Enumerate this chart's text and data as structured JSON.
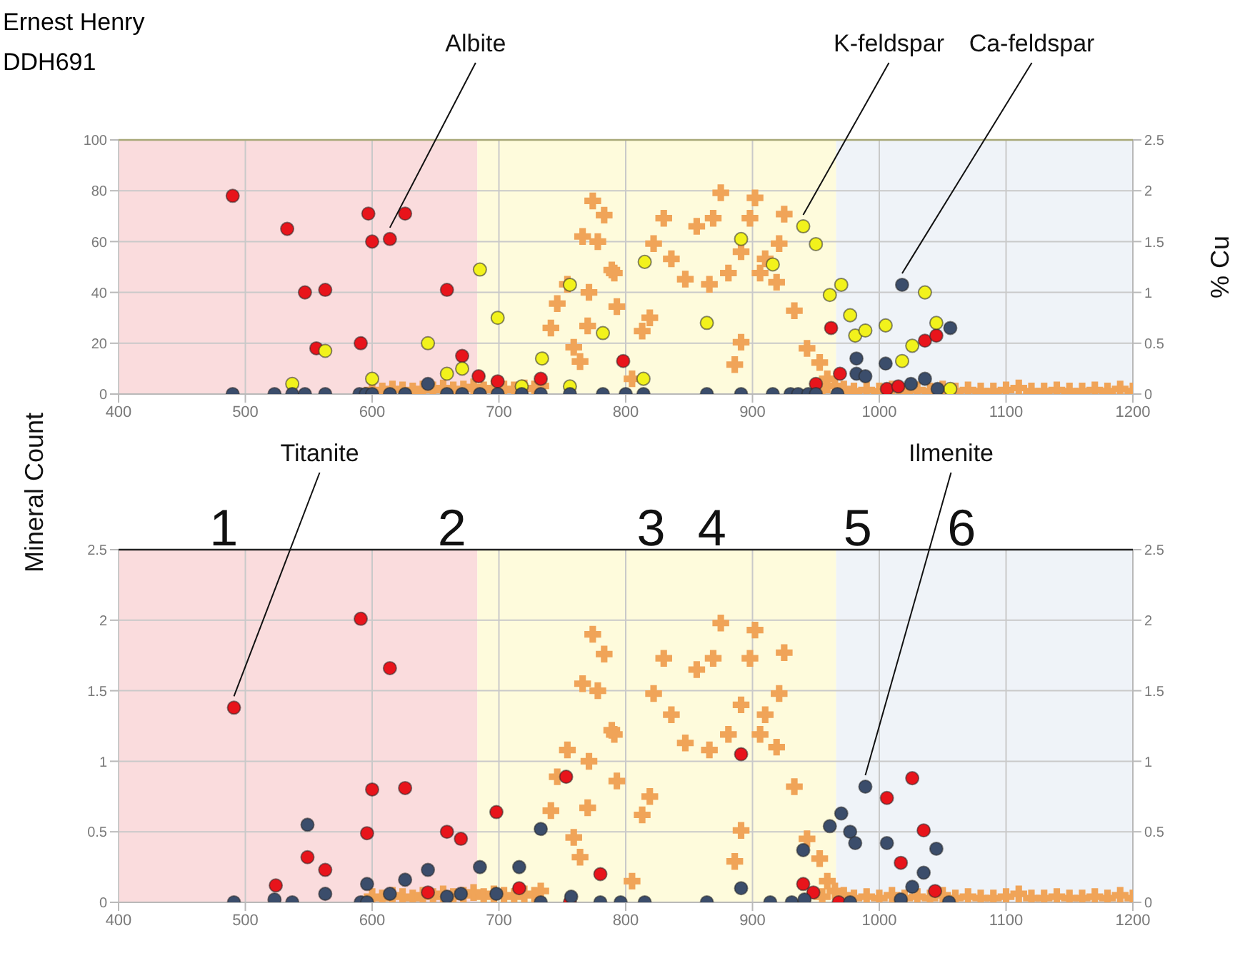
{
  "chart_data": [
    {
      "type": "scatter",
      "title": "Ernest Henry",
      "subtitle": "DDH691",
      "y2label": "% Cu",
      "xlim": [
        400,
        1200
      ],
      "xticks": [
        400,
        500,
        600,
        700,
        800,
        900,
        1000,
        1100,
        1200
      ],
      "ylim": [
        0,
        100
      ],
      "yticks": [
        0,
        20,
        40,
        60,
        80,
        100
      ],
      "y2lim": [
        0,
        2.5
      ],
      "y2ticks": [
        0,
        0.5,
        1,
        1.5,
        2,
        2.5
      ],
      "grid": true,
      "legend": false,
      "bands": [
        {
          "axis": "x",
          "from": 400,
          "to": 683,
          "color": "#fadcdd"
        },
        {
          "axis": "x",
          "from": 683,
          "to": 966,
          "color": "#fefbdc"
        },
        {
          "axis": "x",
          "from": 966,
          "to": 1200,
          "color": "#eff3f8"
        }
      ],
      "annotations": [
        {
          "text": "Albite",
          "x": 614,
          "y": 61
        },
        {
          "text": "K-feldspar",
          "x": 940,
          "y": 66
        },
        {
          "text": "Ca-feldspar",
          "x": 1018,
          "y": 43
        }
      ],
      "series": [
        {
          "type": "scatter",
          "marker": "cross",
          "axis": "y2",
          "color": "#f0a458",
          "x": [
            600,
            608,
            616,
            624,
            632,
            640,
            648,
            656,
            664,
            672,
            680,
            688,
            696,
            704,
            712,
            720,
            728,
            733,
            741,
            746,
            754,
            759,
            764,
            766,
            770,
            771,
            774,
            778,
            783,
            789,
            791,
            793,
            805,
            813,
            819,
            822,
            830,
            836,
            847,
            856,
            866,
            869,
            875,
            881,
            886,
            891,
            891,
            898,
            902,
            906,
            910,
            919,
            921,
            925,
            933,
            943,
            953,
            955,
            959,
            965,
            972,
            980,
            990,
            1000,
            1010,
            1020,
            1030,
            1040,
            1050,
            1060,
            1070,
            1080,
            1090,
            1100,
            1110,
            1120,
            1130,
            1140,
            1150,
            1160,
            1170,
            1180,
            1190,
            1200
          ],
          "values": [
            0.04,
            0.03,
            0.05,
            0.04,
            0.03,
            0.05,
            0.04,
            0.06,
            0.04,
            0.05,
            0.07,
            0.04,
            0.06,
            0.05,
            0.04,
            0.06,
            0.05,
            0.08,
            0.65,
            0.89,
            1.08,
            0.46,
            0.32,
            1.55,
            0.67,
            1.0,
            1.9,
            1.5,
            1.76,
            1.22,
            1.19,
            0.86,
            0.15,
            0.62,
            0.75,
            1.48,
            1.73,
            1.33,
            1.13,
            1.65,
            1.08,
            1.73,
            1.98,
            1.19,
            0.29,
            0.51,
            1.4,
            1.73,
            1.93,
            1.19,
            1.33,
            1.1,
            1.48,
            1.77,
            0.82,
            0.45,
            0.31,
            0.04,
            0.15,
            0.08,
            0.05,
            0.03,
            0.04,
            0.03,
            0.05,
            0.03,
            0.04,
            0.03,
            0.05,
            0.03,
            0.04,
            0.03,
            0.03,
            0.04,
            0.06,
            0.03,
            0.03,
            0.04,
            0.03,
            0.03,
            0.04,
            0.03,
            0.05,
            0.03
          ]
        },
        {
          "type": "scatter",
          "marker": "circle",
          "color": "#e8141b",
          "x": [
            490,
            533,
            547,
            556,
            563,
            591,
            597,
            600,
            614,
            626,
            659,
            671,
            684,
            699,
            733,
            798,
            950,
            962,
            969,
            1006,
            1015,
            1036,
            1045
          ],
          "values": [
            78,
            65,
            40,
            18,
            41,
            20,
            71,
            60,
            61,
            71,
            41,
            15,
            7,
            5,
            6,
            13,
            4,
            26,
            8,
            2,
            3,
            21,
            23
          ]
        },
        {
          "type": "scatter",
          "marker": "circle",
          "color": "#f2f21c",
          "x": [
            537,
            563,
            600,
            644,
            659,
            671,
            685,
            699,
            718,
            734,
            756,
            756,
            782,
            814,
            815,
            864,
            891,
            916,
            940,
            950,
            961,
            970,
            977,
            981,
            989,
            1005,
            1018,
            1026,
            1036,
            1045,
            1056
          ],
          "values": [
            4,
            17,
            6,
            20,
            8,
            10,
            49,
            30,
            3,
            14,
            43,
            3,
            24,
            6,
            52,
            28,
            61,
            51,
            66,
            59,
            39,
            43,
            31,
            23,
            25,
            27,
            13,
            19,
            40,
            28,
            2
          ]
        },
        {
          "type": "scatter",
          "marker": "circle",
          "color": "#3b4d6b",
          "x": [
            490,
            523,
            537,
            547,
            563,
            590,
            595,
            600,
            614,
            626,
            644,
            659,
            671,
            685,
            699,
            718,
            733,
            756,
            782,
            800,
            814,
            864,
            891,
            916,
            930,
            936,
            944,
            950,
            967,
            982,
            982,
            989,
            1005,
            1018,
            1025,
            1036,
            1046,
            1056
          ],
          "values": [
            0,
            0,
            0,
            0,
            0,
            0,
            0,
            0,
            0,
            0,
            4,
            0,
            0,
            0,
            0,
            0,
            0,
            0,
            0,
            0,
            0,
            0,
            0,
            0,
            0,
            0,
            0,
            0,
            0,
            14,
            8,
            7,
            12,
            43,
            4,
            6,
            2,
            26
          ]
        }
      ]
    },
    {
      "type": "scatter",
      "ylabel": "Mineral Count",
      "xlim": [
        400,
        1200
      ],
      "xticks": [
        400,
        500,
        600,
        700,
        800,
        900,
        1000,
        1100,
        1200
      ],
      "ylim": [
        0,
        2.5
      ],
      "yticks": [
        0,
        0.5,
        1,
        1.5,
        2,
        2.5
      ],
      "y2lim": [
        0,
        2.5
      ],
      "y2ticks": [
        0,
        0.5,
        1,
        1.5,
        2,
        2.5
      ],
      "grid": true,
      "legend": false,
      "bands": [
        {
          "axis": "x",
          "from": 400,
          "to": 683,
          "color": "#fadcdd"
        },
        {
          "axis": "x",
          "from": 683,
          "to": 966,
          "color": "#fefbdc"
        },
        {
          "axis": "x",
          "from": 966,
          "to": 1200,
          "color": "#eff3f8"
        }
      ],
      "annotations": [
        {
          "text": "Titanite",
          "x": 491,
          "y": 1.38
        },
        {
          "text": "Ilmenite",
          "x": 989,
          "y": 0.82
        },
        {
          "text": "1",
          "x": 483,
          "y": 2.5
        },
        {
          "text": "2",
          "x": 663,
          "y": 2.5
        },
        {
          "text": "3",
          "x": 820,
          "y": 2.5
        },
        {
          "text": "4",
          "x": 868,
          "y": 2.5
        },
        {
          "text": "5",
          "x": 983,
          "y": 2.5
        },
        {
          "text": "6",
          "x": 1065,
          "y": 2.5
        }
      ],
      "series": [
        {
          "type": "scatter",
          "marker": "cross",
          "axis": "y2",
          "color": "#f0a458",
          "x": [
            600,
            608,
            616,
            624,
            632,
            640,
            648,
            656,
            664,
            672,
            680,
            688,
            696,
            704,
            712,
            720,
            728,
            733,
            741,
            746,
            754,
            759,
            764,
            766,
            770,
            771,
            774,
            778,
            783,
            789,
            791,
            793,
            805,
            813,
            819,
            822,
            830,
            836,
            847,
            856,
            866,
            869,
            875,
            881,
            886,
            891,
            891,
            898,
            902,
            906,
            910,
            919,
            921,
            925,
            933,
            943,
            953,
            955,
            959,
            965,
            972,
            980,
            990,
            1000,
            1010,
            1020,
            1030,
            1040,
            1050,
            1060,
            1070,
            1080,
            1090,
            1100,
            1110,
            1120,
            1130,
            1140,
            1150,
            1160,
            1170,
            1180,
            1190,
            1200
          ],
          "values": [
            0.04,
            0.03,
            0.05,
            0.04,
            0.03,
            0.05,
            0.04,
            0.06,
            0.04,
            0.05,
            0.07,
            0.04,
            0.06,
            0.05,
            0.04,
            0.06,
            0.05,
            0.08,
            0.65,
            0.89,
            1.08,
            0.46,
            0.32,
            1.55,
            0.67,
            1.0,
            1.9,
            1.5,
            1.76,
            1.22,
            1.19,
            0.86,
            0.15,
            0.62,
            0.75,
            1.48,
            1.73,
            1.33,
            1.13,
            1.65,
            1.08,
            1.73,
            1.98,
            1.19,
            0.29,
            0.51,
            1.4,
            1.73,
            1.93,
            1.19,
            1.33,
            1.1,
            1.48,
            1.77,
            0.82,
            0.45,
            0.31,
            0.04,
            0.15,
            0.08,
            0.05,
            0.03,
            0.04,
            0.03,
            0.05,
            0.03,
            0.04,
            0.03,
            0.05,
            0.03,
            0.04,
            0.03,
            0.03,
            0.04,
            0.06,
            0.03,
            0.03,
            0.04,
            0.03,
            0.03,
            0.04,
            0.03,
            0.05,
            0.03
          ]
        },
        {
          "type": "scatter",
          "marker": "circle",
          "color": "#e8141b",
          "x": [
            491,
            524,
            549,
            563,
            591,
            596,
            600,
            614,
            626,
            644,
            659,
            670,
            698,
            716,
            753,
            756,
            780,
            891,
            940,
            948,
            968,
            1006,
            1017,
            1026,
            1035,
            1044
          ],
          "values": [
            1.38,
            0.12,
            0.32,
            0.23,
            2.01,
            0.49,
            0.8,
            1.66,
            0.81,
            0.07,
            0.5,
            0.45,
            0.64,
            0.1,
            0.89,
            0,
            0.2,
            1.05,
            0.13,
            0.07,
            0,
            0.74,
            0.28,
            0.88,
            0.51,
            0.08
          ]
        },
        {
          "type": "scatter",
          "marker": "circle",
          "color": "#3b4d6b",
          "x": [
            491,
            523,
            537,
            549,
            563,
            591,
            596,
            596,
            614,
            626,
            644,
            659,
            670,
            685,
            698,
            716,
            733,
            733,
            757,
            780,
            796,
            815,
            864,
            891,
            914,
            931,
            940,
            941,
            961,
            970,
            977,
            977,
            981,
            989,
            1006,
            1017,
            1026,
            1035,
            1045,
            1055
          ],
          "values": [
            0,
            0.02,
            0,
            0.55,
            0.06,
            0,
            0.13,
            0,
            0.06,
            0.16,
            0.23,
            0.04,
            0.06,
            0.25,
            0.06,
            0.25,
            0.52,
            0,
            0.04,
            0,
            0,
            0,
            0,
            0.1,
            0,
            0,
            0.37,
            0.02,
            0.54,
            0.63,
            0.5,
            0,
            0.42,
            0.82,
            0.42,
            0.02,
            0.11,
            0.21,
            0.38,
            0
          ]
        }
      ]
    }
  ]
}
